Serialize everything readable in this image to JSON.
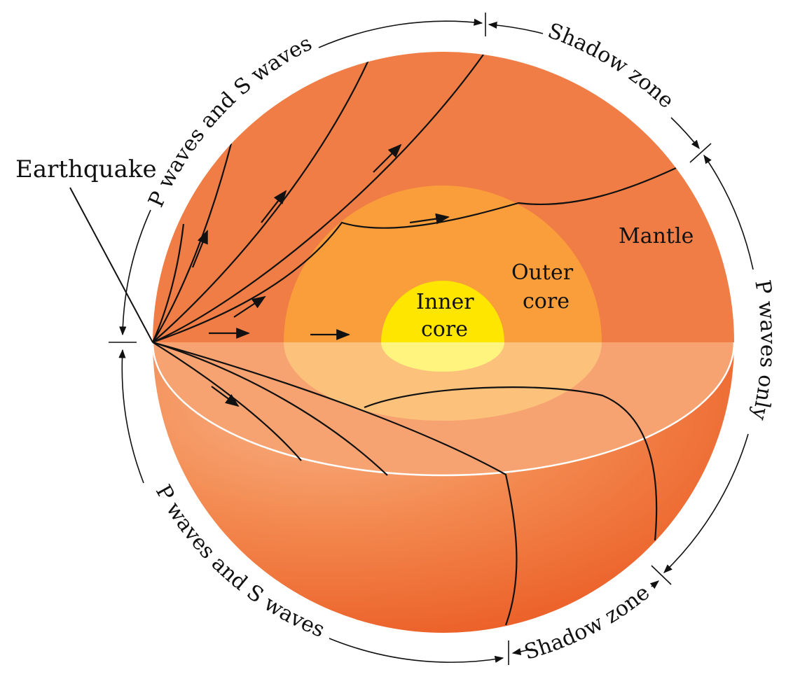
{
  "labels": {
    "earthquake": "Earthquake",
    "mantle": "Mantle",
    "outer_core_line1": "Outer",
    "outer_core_line2": "core",
    "inner_core_line1": "Inner",
    "inner_core_line2": "core",
    "upper_left_zone": "P waves and S waves",
    "upper_shadow_zone": "Shadow zone",
    "right_zone": "P waves only",
    "lower_left_zone": "P waves and S waves",
    "lower_shadow_zone": "Shadow zone"
  },
  "colors": {
    "mantle": "#f07d45",
    "mantle_lower": "#f7a271",
    "outer_core": "#f99e3b",
    "outer_core_lower": "#fcc27c",
    "inner_core": "#ffe600",
    "inner_core_lower": "#fff47e",
    "sphere_dark": "#ea5a24",
    "rim": "#ffffff",
    "ink": "#111111"
  }
}
